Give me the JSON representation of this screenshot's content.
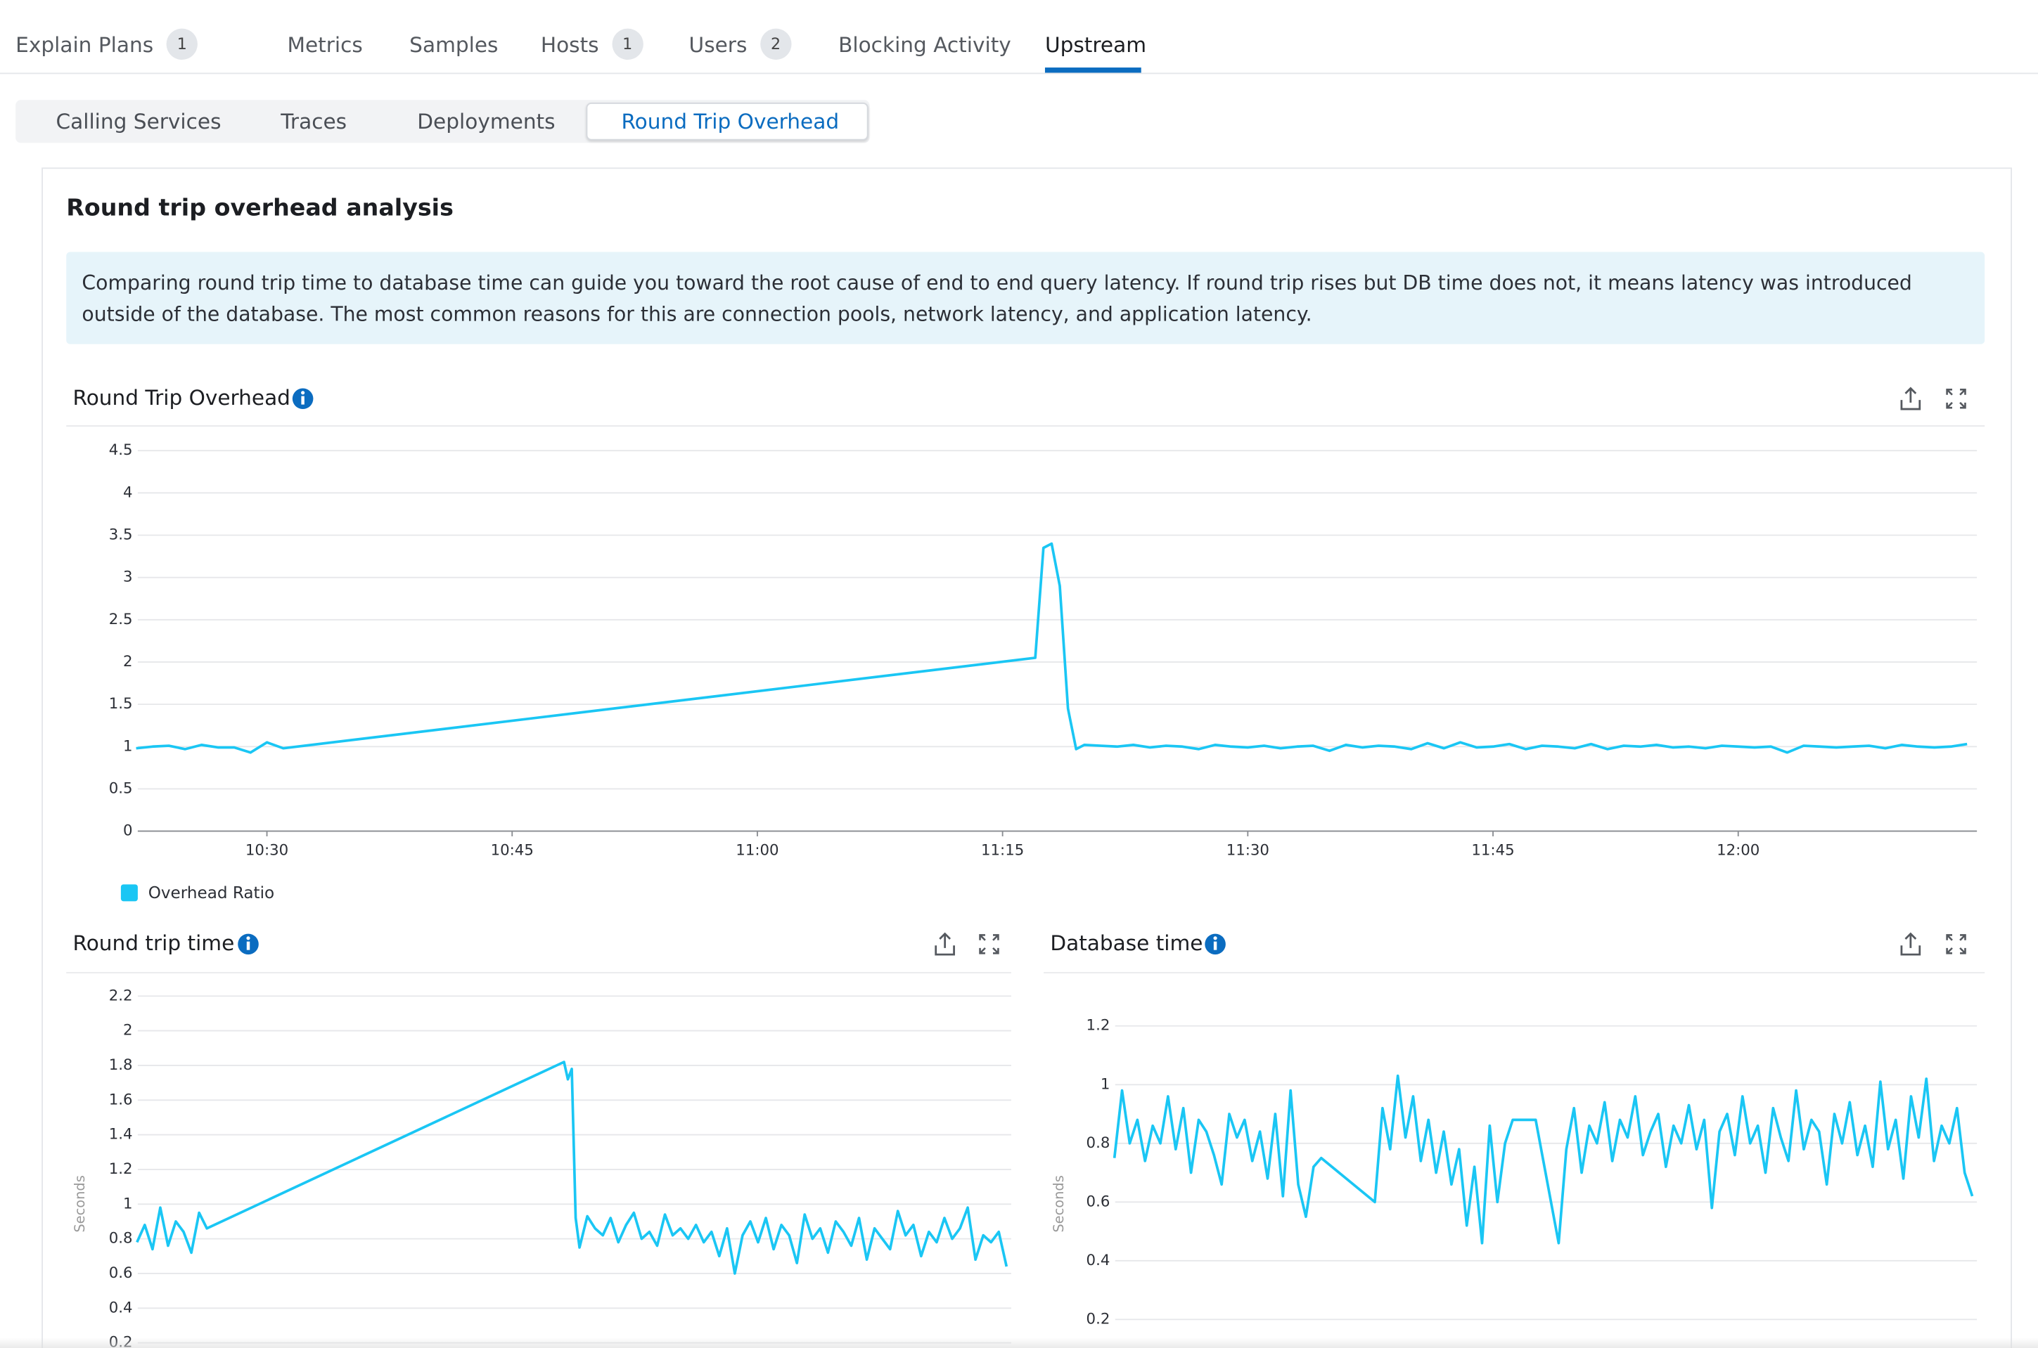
{
  "tabs": [
    {
      "label": "Explain Plans",
      "count": 1
    },
    {
      "label": "Metrics"
    },
    {
      "label": "Samples"
    },
    {
      "label": "Hosts",
      "count": 1
    },
    {
      "label": "Users",
      "count": 2
    },
    {
      "label": "Blocking Activity"
    },
    {
      "label": "Upstream",
      "selected": true
    }
  ],
  "subtabs": [
    {
      "label": "Calling Services"
    },
    {
      "label": "Traces"
    },
    {
      "label": "Deployments"
    },
    {
      "label": "Round Trip Overhead",
      "selected": true
    }
  ],
  "panel": {
    "title": "Round trip overhead analysis",
    "info": "Comparing round trip time to database time can guide you toward the root cause of end to end query latency. If round trip rises but DB time does not, it means latency was introduced outside of the database. The most common reasons for this are connection pools, network latency, and application latency."
  },
  "chart_data": [
    {
      "type": "line",
      "title": "Round Trip Overhead",
      "xlim": [
        622.1,
        734.6
      ],
      "xticks": [
        {
          "value": 630,
          "label": "10:30"
        },
        {
          "value": 645,
          "label": "10:45"
        },
        {
          "value": 660,
          "label": "11:00"
        },
        {
          "value": 675,
          "label": "11:15"
        },
        {
          "value": 690,
          "label": "11:30"
        },
        {
          "value": 705,
          "label": "11:45"
        },
        {
          "value": 720,
          "label": "12:00"
        }
      ],
      "ylim": [
        0,
        4.5
      ],
      "yticks": [
        0,
        0.5,
        1,
        1.5,
        2,
        2.5,
        3,
        3.5,
        4,
        4.5
      ],
      "grid": true,
      "legend": true,
      "x": [
        622,
        623,
        624,
        625,
        626,
        627,
        628,
        629,
        630,
        631,
        677,
        677.5,
        678,
        678.5,
        679,
        679.5,
        680,
        681,
        682,
        683,
        684,
        685,
        686,
        687,
        688,
        689,
        690,
        691,
        692,
        693,
        694,
        695,
        696,
        697,
        698,
        699,
        700,
        701,
        702,
        703,
        704,
        705,
        706,
        707,
        708,
        709,
        710,
        711,
        712,
        713,
        714,
        715,
        716,
        717,
        718,
        719,
        720,
        721,
        722,
        723,
        724,
        725,
        726,
        727,
        728,
        729,
        730,
        731,
        732,
        733,
        734
      ],
      "series": [
        {
          "name": "Overhead Ratio",
          "color": "#1ac6f4",
          "values": [
            0.98,
            1.0,
            1.01,
            0.97,
            1.02,
            0.99,
            0.99,
            0.93,
            1.05,
            0.98,
            2.05,
            3.35,
            3.4,
            2.9,
            1.45,
            0.97,
            1.02,
            1.01,
            1.0,
            1.02,
            0.99,
            1.01,
            1.0,
            0.97,
            1.02,
            1.0,
            0.99,
            1.01,
            0.98,
            1.0,
            1.01,
            0.95,
            1.02,
            0.99,
            1.01,
            1.0,
            0.97,
            1.04,
            0.98,
            1.05,
            0.99,
            1.0,
            1.03,
            0.97,
            1.01,
            1.0,
            0.98,
            1.03,
            0.97,
            1.01,
            1.0,
            1.02,
            0.99,
            1.0,
            0.98,
            1.01,
            1.0,
            0.99,
            1.0,
            0.93,
            1.01,
            1.0,
            0.99,
            1.0,
            1.01,
            0.98,
            1.02,
            1.0,
            0.99,
            1.0,
            1.03
          ]
        }
      ]
    },
    {
      "type": "line",
      "title": "Round trip time",
      "y_label": "Seconds",
      "xlim": [
        622.1,
        734.6
      ],
      "ylim": [
        0.2,
        2.2
      ],
      "yticks": [
        0.2,
        0.4,
        0.6,
        0.8,
        1,
        1.2,
        1.4,
        1.6,
        1.8,
        2,
        2.2
      ],
      "grid": true,
      "x": [
        622,
        623,
        624,
        625,
        626,
        627,
        628,
        629,
        630,
        631,
        677,
        677.5,
        678,
        678.5,
        679,
        680,
        681,
        682,
        683,
        684,
        685,
        686,
        687,
        688,
        689,
        690,
        691,
        692,
        693,
        694,
        695,
        696,
        697,
        698,
        699,
        700,
        701,
        702,
        703,
        704,
        705,
        706,
        707,
        708,
        709,
        710,
        711,
        712,
        713,
        714,
        715,
        716,
        717,
        718,
        719,
        720,
        721,
        722,
        723,
        724,
        725,
        726,
        727,
        728,
        729,
        730,
        731,
        732,
        733,
        734
      ],
      "series": [
        {
          "color": "#1ac6f4",
          "values": [
            0.78,
            0.88,
            0.74,
            0.98,
            0.76,
            0.9,
            0.84,
            0.72,
            0.95,
            0.86,
            1.82,
            1.72,
            1.78,
            0.92,
            0.75,
            0.93,
            0.86,
            0.82,
            0.92,
            0.78,
            0.88,
            0.95,
            0.8,
            0.84,
            0.76,
            0.94,
            0.82,
            0.86,
            0.8,
            0.88,
            0.78,
            0.84,
            0.7,
            0.86,
            0.6,
            0.82,
            0.9,
            0.78,
            0.92,
            0.74,
            0.88,
            0.82,
            0.66,
            0.94,
            0.8,
            0.86,
            0.72,
            0.9,
            0.84,
            0.76,
            0.92,
            0.68,
            0.86,
            0.8,
            0.74,
            0.96,
            0.82,
            0.88,
            0.7,
            0.84,
            0.78,
            0.92,
            0.8,
            0.86,
            0.98,
            0.68,
            0.82,
            0.78,
            0.84,
            0.64
          ]
        }
      ]
    },
    {
      "type": "line",
      "title": "Database time",
      "y_label": "Seconds",
      "xlim": [
        622.1,
        734.6
      ],
      "ylim": [
        0.2,
        1.2
      ],
      "yticks": [
        0.2,
        0.4,
        0.6,
        0.8,
        1,
        1.2
      ],
      "grid": true,
      "x": [
        622,
        623,
        624,
        625,
        626,
        627,
        628,
        629,
        630,
        631,
        632,
        633,
        634,
        635,
        636,
        637,
        638,
        639,
        640,
        641,
        642,
        643,
        644,
        645,
        646,
        647,
        648,
        649,
        656,
        657,
        658,
        659,
        660,
        661,
        662,
        663,
        664,
        665,
        666,
        667,
        668,
        669,
        670,
        671,
        672,
        673,
        674,
        677,
        680,
        681,
        682,
        683,
        684,
        685,
        686,
        687,
        688,
        689,
        690,
        691,
        692,
        693,
        694,
        695,
        696,
        697,
        698,
        699,
        700,
        701,
        702,
        703,
        704,
        705,
        706,
        707,
        708,
        709,
        710,
        711,
        712,
        713,
        714,
        715,
        716,
        717,
        718,
        719,
        720,
        721,
        722,
        723,
        724,
        725,
        726,
        727,
        728,
        729,
        730,
        731,
        732,
        733,
        734
      ],
      "series": [
        {
          "color": "#1ac6f4",
          "values": [
            0.75,
            0.98,
            0.8,
            0.88,
            0.74,
            0.86,
            0.8,
            0.96,
            0.78,
            0.92,
            0.7,
            0.88,
            0.84,
            0.76,
            0.66,
            0.9,
            0.82,
            0.88,
            0.74,
            0.84,
            0.68,
            0.9,
            0.62,
            0.98,
            0.66,
            0.55,
            0.72,
            0.75,
            0.6,
            0.92,
            0.78,
            1.03,
            0.82,
            0.96,
            0.74,
            0.88,
            0.7,
            0.84,
            0.66,
            0.78,
            0.52,
            0.72,
            0.46,
            0.86,
            0.6,
            0.8,
            0.88,
            0.88,
            0.46,
            0.78,
            0.92,
            0.7,
            0.86,
            0.8,
            0.94,
            0.74,
            0.88,
            0.82,
            0.96,
            0.76,
            0.84,
            0.9,
            0.72,
            0.86,
            0.8,
            0.93,
            0.78,
            0.88,
            0.58,
            0.84,
            0.9,
            0.76,
            0.96,
            0.8,
            0.86,
            0.7,
            0.92,
            0.82,
            0.74,
            0.98,
            0.78,
            0.88,
            0.84,
            0.66,
            0.9,
            0.8,
            0.94,
            0.76,
            0.86,
            0.72,
            1.01,
            0.78,
            0.88,
            0.68,
            0.96,
            0.82,
            1.02,
            0.74,
            0.86,
            0.8,
            0.92,
            0.7,
            0.62
          ]
        }
      ]
    }
  ]
}
